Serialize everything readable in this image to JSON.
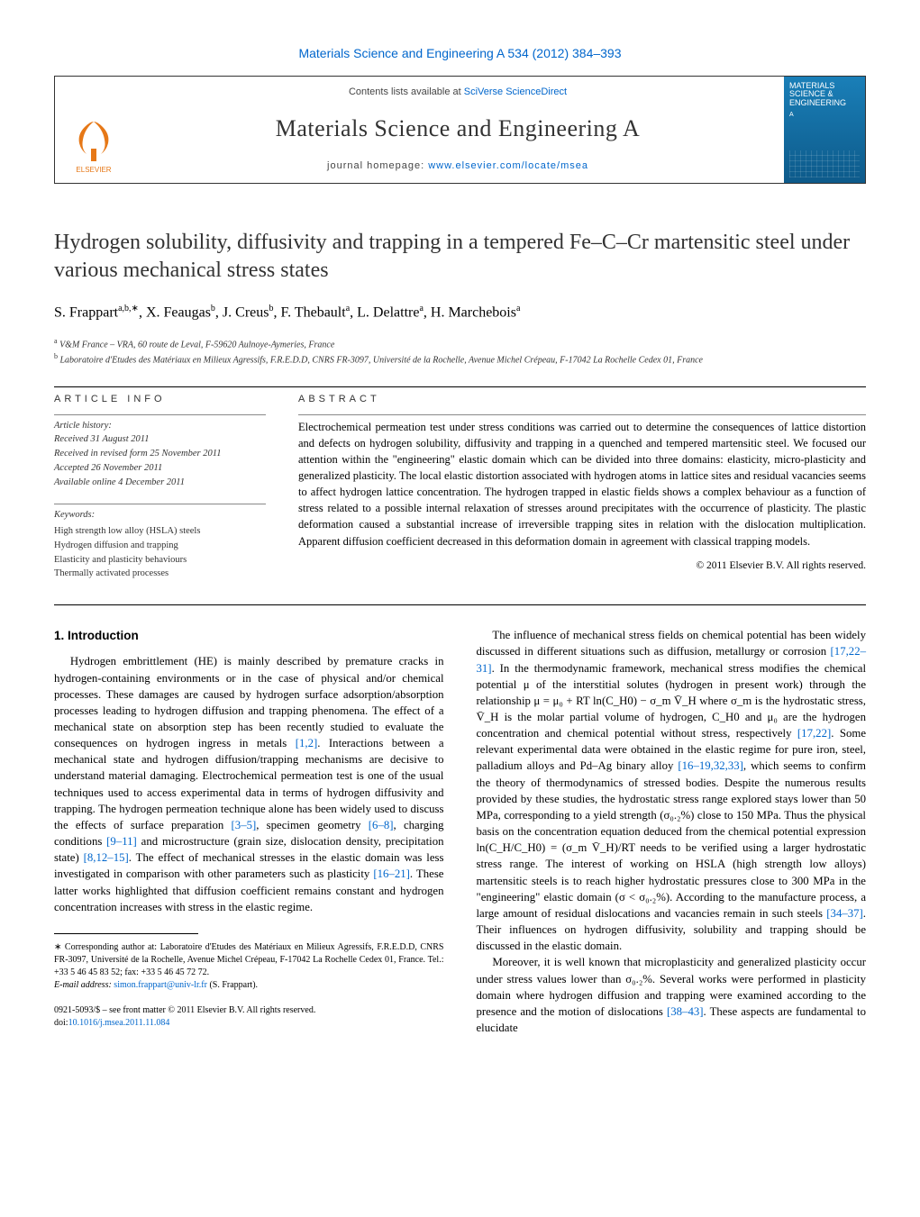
{
  "top_citation": "Materials Science and Engineering A 534 (2012) 384–393",
  "banner": {
    "contents_prefix": "Contents lists available at ",
    "contents_link": "SciVerse ScienceDirect",
    "journal": "Materials Science and Engineering A",
    "homepage_prefix": "journal homepage: ",
    "homepage_url": "www.elsevier.com/locate/msea",
    "cover_title": "MATERIALS SCIENCE & ENGINEERING",
    "cover_sub": "A"
  },
  "title": "Hydrogen solubility, diffusivity and trapping in a tempered Fe–C–Cr martensitic steel under various mechanical stress states",
  "authors_html": "S. Frappart<sup>a,b,∗</sup>, X. Feaugas<sup>b</sup>, J. Creus<sup>b</sup>, F. Thebault<sup>a</sup>, L. Delattre<sup>a</sup>, H. Marchebois<sup>a</sup>",
  "affiliations": {
    "a": "V&M France – VRA, 60 route de Leval, F-59620 Aulnoye-Aymeries, France",
    "b": "Laboratoire d'Etudes des Matériaux en Milieux Agressifs, F.R.E.D.D, CNRS FR-3097, Université de la Rochelle, Avenue Michel Crépeau, F-17042 La Rochelle Cedex 01, France"
  },
  "article_info_head": "ARTICLE INFO",
  "abstract_head": "ABSTRACT",
  "history": {
    "lbl": "Article history:",
    "received": "Received 31 August 2011",
    "revised": "Received in revised form 25 November 2011",
    "accepted": "Accepted 26 November 2011",
    "online": "Available online 4 December 2011"
  },
  "keywords": {
    "head": "Keywords:",
    "items": [
      "High strength low alloy (HSLA) steels",
      "Hydrogen diffusion and trapping",
      "Elasticity and plasticity behaviours",
      "Thermally activated processes"
    ]
  },
  "abstract": "Electrochemical permeation test under stress conditions was carried out to determine the consequences of lattice distortion and defects on hydrogen solubility, diffusivity and trapping in a quenched and tempered martensitic steel. We focused our attention within the \"engineering\" elastic domain which can be divided into three domains: elasticity, micro-plasticity and generalized plasticity. The local elastic distortion associated with hydrogen atoms in lattice sites and residual vacancies seems to affect hydrogen lattice concentration. The hydrogen trapped in elastic fields shows a complex behaviour as a function of stress related to a possible internal relaxation of stresses around precipitates with the occurrence of plasticity. The plastic deformation caused a substantial increase of irreversible trapping sites in relation with the dislocation multiplication. Apparent diffusion coefficient decreased in this deformation domain in agreement with classical trapping models.",
  "copyright": "© 2011 Elsevier B.V. All rights reserved.",
  "section1_head": "1. Introduction",
  "p1": "Hydrogen embrittlement (HE) is mainly described by premature cracks in hydrogen-containing environments or in the case of physical and/or chemical processes. These damages are caused by hydrogen surface adsorption/absorption processes leading to hydrogen diffusion and trapping phenomena. The effect of a mechanical state on absorption step has been recently studied to evaluate the consequences on hydrogen ingress in metals ",
  "r1": "[1,2]",
  "p1b": ". Interactions between a mechanical state and hydrogen diffusion/trapping mechanisms are decisive to understand material damaging. Electrochemical permeation test is one of the usual techniques used to access experimental data in terms of hydrogen diffusivity and trapping. The hydrogen permeation technique alone has been widely used to discuss the effects of surface preparation ",
  "r2": "[3–5]",
  "p1c": ", specimen geometry ",
  "r3": "[6–8]",
  "p1d": ", charging conditions ",
  "r4": "[9–11]",
  "p1e": " and microstructure (grain size, dislocation density, precipitation state) ",
  "r5": "[8,12–15]",
  "p1f": ". The effect of mechanical stresses in the elastic domain was less investigated in comparison with other parameters such as plasticity ",
  "r6": "[16–21]",
  "p1g": ". These latter works highlighted that diffusion coefficient remains constant and hydrogen concentration increases with stress in the elastic regime.",
  "p2a": "The influence of mechanical stress fields on chemical potential has been widely discussed in different situations such as diffusion, metallurgy or corrosion ",
  "r7": "[17,22–31]",
  "p2b": ". In the thermodynamic framework, mechanical stress modifies the chemical potential μ of the interstitial solutes (hydrogen in present work) through the relationship μ = μ₀ + RT ln(C_H0) − σ_m V̄_H where σ_m is the hydrostatic stress, V̄_H is the molar partial volume of hydrogen, C_H0 and μ₀ are the hydrogen concentration and chemical potential without stress, respectively ",
  "r8": "[17,22]",
  "p2c": ". Some relevant experimental data were obtained in the elastic regime for pure iron, steel, palladium alloys and Pd–Ag binary alloy ",
  "r9": "[16–19,32,33]",
  "p2d": ", which seems to confirm the theory of thermodynamics of stressed bodies. Despite the numerous results provided by these studies, the hydrostatic stress range explored stays lower than 50 MPa, corresponding to a yield strength (σ₀.₂%) close to 150 MPa. Thus the physical basis on the concentration equation deduced from the chemical potential expression ln(C_H/C_H0) = (σ_m V̄_H)/RT needs to be verified using a larger hydrostatic stress range. The interest of working on HSLA (high strength low alloys) martensitic steels is to reach higher hydrostatic pressures close to 300 MPa in the \"engineering\" elastic domain (σ < σ₀.₂%). According to the manufacture process, a large amount of residual dislocations and vacancies remain in such steels ",
  "r10": "[34–37]",
  "p2e": ". Their influences on hydrogen diffusivity, solubility and trapping should be discussed in the elastic domain.",
  "p3a": "Moreover, it is well known that microplasticity and generalized plasticity occur under stress values lower than σ₀.₂%. Several works were performed in plasticity domain where hydrogen diffusion and trapping were examined according to the presence and the motion of dislocations ",
  "r11": "[38–43]",
  "p3b": ". These aspects are fundamental to elucidate",
  "footnote": {
    "corr": "∗ Corresponding author at: Laboratoire d'Etudes des Matériaux en Milieux Agressifs, F.R.E.D.D, CNRS FR-3097, Université de la Rochelle, Avenue Michel Crépeau, F-17042 La Rochelle Cedex 01, France. Tel.: +33 5 46 45 83 52; fax: +33 5 46 45 72 72.",
    "email_lbl": "E-mail address: ",
    "email": "simon.frappart@univ-lr.fr",
    "email_who": " (S. Frappart)."
  },
  "doi": {
    "line1": "0921-5093/$ – see front matter © 2011 Elsevier B.V. All rights reserved.",
    "line2_lbl": "doi:",
    "line2": "10.1016/j.msea.2011.11.084"
  }
}
